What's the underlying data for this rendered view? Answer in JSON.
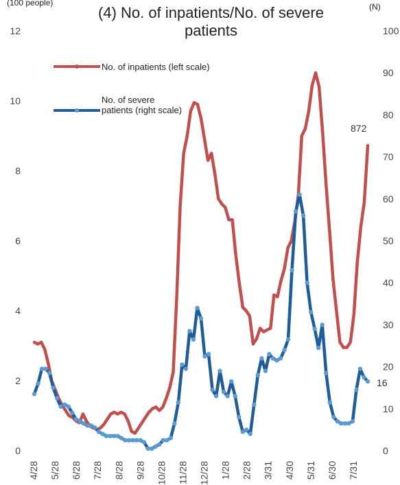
{
  "chart_data": {
    "type": "line",
    "title": "(4) No. of inpatients/No. of severe patients",
    "y_left_unit": "(100 people)",
    "y_right_unit": "(N)",
    "y_left_ticks": [
      "0",
      "2",
      "4",
      "6",
      "8",
      "10",
      "12"
    ],
    "y_right_ticks": [
      "0",
      "10",
      "20",
      "30",
      "40",
      "50",
      "60",
      "70",
      "80",
      "90",
      "100"
    ],
    "ylim_left": [
      0,
      12
    ],
    "ylim_right": [
      0,
      100
    ],
    "x_ticks": [
      "4/28",
      "5/28",
      "6/28",
      "7/28",
      "8/28",
      "9/28",
      "10/28",
      "11/28",
      "12/28",
      "1/28",
      "2/28",
      "3/31",
      "4/30",
      "5/31",
      "6/30",
      "7/31"
    ],
    "legend": {
      "position": "top-left"
    },
    "series": [
      {
        "name": "No. of inpatients (left scale)",
        "axis": "left",
        "color": "#c0504d",
        "last_label": "872",
        "values": [
          3.1,
          3.05,
          3.1,
          2.9,
          2.5,
          2.0,
          1.75,
          1.5,
          1.3,
          1.15,
          1.0,
          0.95,
          0.85,
          0.8,
          1.05,
          0.85,
          0.7,
          0.65,
          0.6,
          0.65,
          0.75,
          0.9,
          1.05,
          1.1,
          1.05,
          1.1,
          1.05,
          0.85,
          0.55,
          0.5,
          0.65,
          0.8,
          0.95,
          1.1,
          1.2,
          1.25,
          1.15,
          1.25,
          1.5,
          1.8,
          2.25,
          4.4,
          7.0,
          8.5,
          9.0,
          9.7,
          9.95,
          9.9,
          9.5,
          8.9,
          8.3,
          8.5,
          7.9,
          7.2,
          7.05,
          6.95,
          6.6,
          6.6,
          5.6,
          4.8,
          4.1,
          4.0,
          3.85,
          3.05,
          3.2,
          3.5,
          3.4,
          3.45,
          3.5,
          4.45,
          4.4,
          4.85,
          5.2,
          5.8,
          6.0,
          6.55,
          7.3,
          9.0,
          9.2,
          9.7,
          10.45,
          10.8,
          10.4,
          9.1,
          7.6,
          6.3,
          4.9,
          4.0,
          3.1,
          2.95,
          2.95,
          3.1,
          3.9,
          5.4,
          6.4,
          7.1,
          8.72
        ]
      },
      {
        "name": "No. of severe patients (right scale)",
        "axis": "right",
        "color": "#1f5c99",
        "last_label": "16",
        "values": [
          13.5,
          16,
          19.5,
          19.5,
          18.5,
          15,
          12.5,
          10.5,
          11,
          10.5,
          9,
          7.5,
          7,
          6.5,
          6,
          6,
          5.5,
          4.5,
          4,
          3.5,
          3.5,
          3.5,
          3.5,
          3,
          2.5,
          2.5,
          2.5,
          2.5,
          2.5,
          2,
          0.5,
          0.5,
          1,
          1.5,
          2.5,
          2.5,
          3,
          6.5,
          11.5,
          20.5,
          19.5,
          28.5,
          26.5,
          34,
          31.5,
          22.5,
          23,
          14.5,
          13,
          19,
          14,
          13,
          16.5,
          13,
          8,
          4.5,
          5,
          4,
          11,
          18,
          22,
          19,
          23,
          22,
          21.5,
          22,
          24,
          26.5,
          43,
          57,
          61,
          56,
          40,
          33,
          29,
          24.5,
          30,
          18.5,
          11.5,
          8,
          7,
          6.5,
          6.5,
          6.5,
          7,
          14.5,
          19.5,
          17.5,
          16.5
        ]
      }
    ]
  }
}
